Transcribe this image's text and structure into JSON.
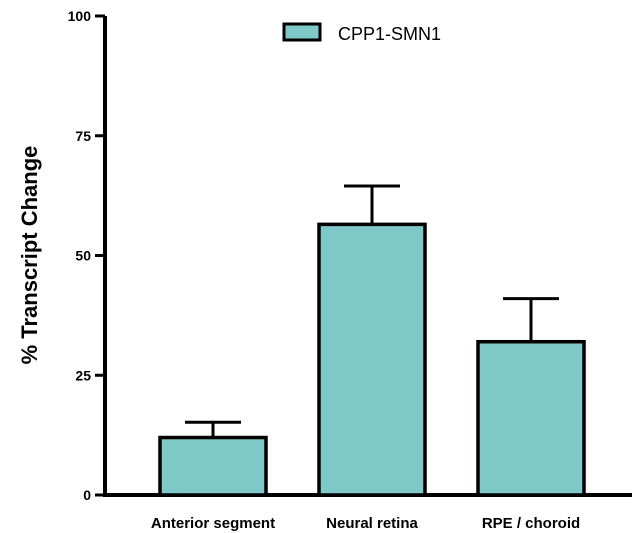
{
  "chart_data": {
    "type": "bar",
    "categories": [
      "Anterior segment",
      "Neural retina",
      "RPE / choroid"
    ],
    "series": [
      {
        "name": "CPP1-SMN1",
        "values": [
          12,
          56.5,
          32
        ],
        "error_upper": [
          15.2,
          64.5,
          41
        ]
      }
    ],
    "ylabel": "% Transcript Change",
    "xlabel": "",
    "ylim": [
      0,
      100
    ],
    "yticks": [
      "0",
      "25",
      "50",
      "75",
      "100"
    ],
    "grid": false,
    "legend_position": "top-right",
    "colors": {
      "bar_fill": "#7fc8c8",
      "stroke": "#000000"
    }
  }
}
